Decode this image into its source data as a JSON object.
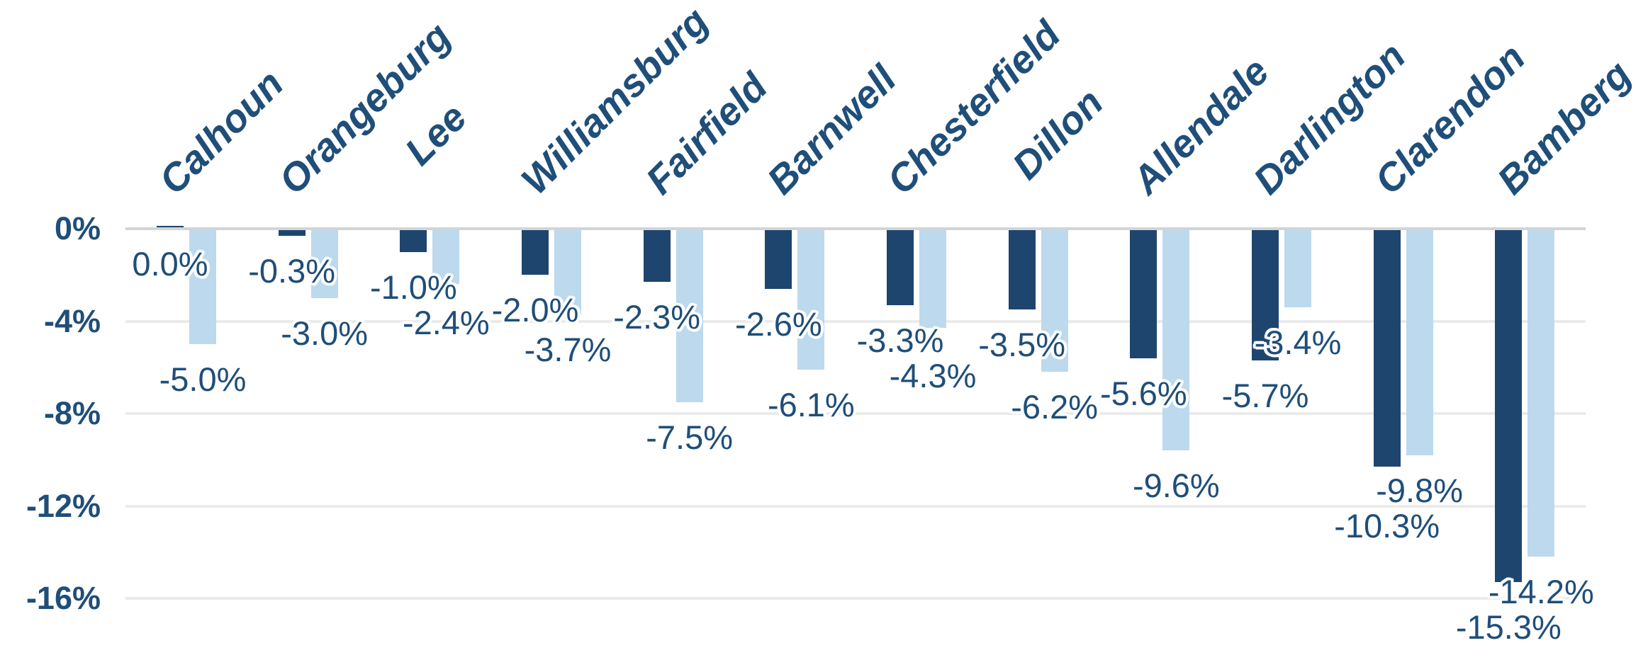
{
  "chart_data": {
    "type": "bar",
    "title": "",
    "categories": [
      "Calhoun",
      "Orangeburg",
      "Lee",
      "Williamsburg",
      "Fairfield",
      "Barnwell",
      "Chesterfield",
      "Dillon",
      "Allendale",
      "Darlington",
      "Clarendon",
      "Bamberg"
    ],
    "series": [
      {
        "name": "dark-navy-series",
        "color": "#1E456E",
        "values": [
          0.0,
          -0.3,
          -1.0,
          -2.0,
          -2.3,
          -2.6,
          -3.3,
          -3.5,
          -5.6,
          -5.7,
          -10.3,
          -15.3
        ],
        "labels": [
          "0.0%",
          "-0.3%",
          "-1.0%",
          "-2.0%",
          "-2.3%",
          "-2.6%",
          "-3.3%",
          "-3.5%",
          "-5.6%",
          "-5.7%",
          "-10.3%",
          "-15.3%"
        ]
      },
      {
        "name": "light-blue-series",
        "color": "#BCD9EE",
        "values": [
          -5.0,
          -3.0,
          -2.4,
          -3.7,
          -7.5,
          -6.1,
          -4.3,
          -6.2,
          -9.6,
          -3.4,
          -9.8,
          -14.2
        ],
        "labels": [
          "-5.0%",
          "-3.0%",
          "-2.4%",
          "-3.7%",
          "-7.5%",
          "-6.1%",
          "-4.3%",
          "-6.2%",
          "-9.6%",
          "-3.4%",
          "-9.8%",
          "-14.2%"
        ]
      }
    ],
    "y_axis": {
      "unit": "%",
      "max": 0,
      "min": -16,
      "ticks": [
        {
          "label": "0%",
          "value": 0
        },
        {
          "label": "-4%",
          "value": -4
        },
        {
          "label": "-8%",
          "value": -8
        },
        {
          "label": "-12%",
          "value": -12
        },
        {
          "label": "-16%",
          "value": -16
        }
      ]
    },
    "grid": "horizontal",
    "legend": "none",
    "colors": {
      "axis_text": "#1F4E79",
      "label_text": "#1F4E79",
      "category_text": "#1F4E79",
      "gridline": "#EBEBEB",
      "zero_line": "#D2D5D8",
      "background": "#FFFFFF"
    }
  }
}
